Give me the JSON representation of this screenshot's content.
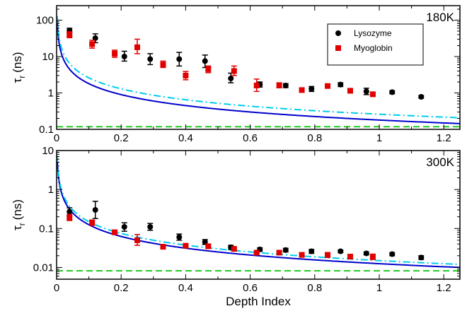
{
  "chart_data": [
    {
      "type": "scatter",
      "temperature_label": "180K",
      "ylabel_main": "τ",
      "ylabel_sub": "r",
      "ylabel_unit": "(ns)",
      "xlim": [
        0,
        1.25
      ],
      "ylim": [
        0.1,
        250
      ],
      "yscale": "log",
      "x_ticks": [
        "0",
        "0.2",
        "0.4",
        "0.6",
        "0.8",
        "1",
        "1.2"
      ],
      "y_ticks": [
        "0.1",
        "1",
        "10",
        "100"
      ],
      "legend": {
        "placement": "top-right",
        "entries": [
          "Lysozyme",
          "Myoglobin"
        ]
      },
      "series": [
        {
          "name": "Lysozyme",
          "marker": "circle",
          "color": "#000000",
          "points": [
            {
              "x": 0.04,
              "y": 52,
              "lo": 45,
              "hi": 60
            },
            {
              "x": 0.12,
              "y": 32,
              "lo": 24,
              "hi": 42
            },
            {
              "x": 0.21,
              "y": 10,
              "lo": 7.5,
              "hi": 14
            },
            {
              "x": 0.29,
              "y": 8.5,
              "lo": 6,
              "hi": 12
            },
            {
              "x": 0.38,
              "y": 8.5,
              "lo": 5.5,
              "hi": 13
            },
            {
              "x": 0.46,
              "y": 7.5,
              "lo": 5,
              "hi": 11
            },
            {
              "x": 0.54,
              "y": 2.5,
              "lo": 1.9,
              "hi": 3.5
            },
            {
              "x": 0.63,
              "y": 1.7,
              "lo": 1.45,
              "hi": 2.0
            },
            {
              "x": 0.71,
              "y": 1.6,
              "lo": 1.4,
              "hi": 1.8
            },
            {
              "x": 0.79,
              "y": 1.3,
              "lo": 1.1,
              "hi": 1.5
            },
            {
              "x": 0.88,
              "y": 1.7,
              "lo": 1.5,
              "hi": 1.9
            },
            {
              "x": 0.96,
              "y": 1.1,
              "lo": 0.9,
              "hi": 1.35
            },
            {
              "x": 1.04,
              "y": 1.05,
              "lo": 0.95,
              "hi": 1.15
            },
            {
              "x": 1.13,
              "y": 0.78,
              "lo": 0.72,
              "hi": 0.85
            }
          ]
        },
        {
          "name": "Myoglobin",
          "marker": "square",
          "color": "#e00000",
          "points": [
            {
              "x": 0.04,
              "y": 40,
              "lo": 33,
              "hi": 48
            },
            {
              "x": 0.11,
              "y": 22,
              "lo": 17,
              "hi": 28
            },
            {
              "x": 0.18,
              "y": 12,
              "lo": 9.5,
              "hi": 15
            },
            {
              "x": 0.25,
              "y": 18,
              "lo": 12,
              "hi": 30
            },
            {
              "x": 0.33,
              "y": 6,
              "lo": 5,
              "hi": 7.5
            },
            {
              "x": 0.4,
              "y": 3,
              "lo": 2.3,
              "hi": 3.9
            },
            {
              "x": 0.47,
              "y": 4.5,
              "lo": 3.6,
              "hi": 5.5
            },
            {
              "x": 0.55,
              "y": 4,
              "lo": 3,
              "hi": 5.5
            },
            {
              "x": 0.62,
              "y": 1.6,
              "lo": 1.1,
              "hi": 2.4
            },
            {
              "x": 0.69,
              "y": 1.6,
              "lo": 1.4,
              "hi": 1.9
            },
            {
              "x": 0.76,
              "y": 1.2,
              "lo": 1.05,
              "hi": 1.35
            },
            {
              "x": 0.84,
              "y": 1.55,
              "lo": 1.4,
              "hi": 1.7
            },
            {
              "x": 0.91,
              "y": 1.15,
              "lo": 1.0,
              "hi": 1.3
            },
            {
              "x": 0.98,
              "y": 0.92,
              "lo": 0.85,
              "hi": 1.0
            }
          ]
        }
      ],
      "curves": [
        {
          "style": "solid",
          "color": "#0000cc",
          "a": 0.18,
          "b": 1.0
        },
        {
          "style": "dash-dot",
          "color": "#00ccee",
          "a": 0.26,
          "b": 1.0
        },
        {
          "style": "dashed",
          "color": "#22cc22",
          "const": 0.118
        }
      ]
    },
    {
      "type": "scatter",
      "temperature_label": "300K",
      "ylabel_main": "τ",
      "ylabel_sub": "r",
      "ylabel_unit": "(ns)",
      "xlabel": "Depth Index",
      "xlim": [
        0,
        1.25
      ],
      "ylim": [
        0.005,
        10
      ],
      "yscale": "log",
      "x_ticks": [
        "0",
        "0.2",
        "0.4",
        "0.6",
        "0.8",
        "1",
        "1.2"
      ],
      "y_ticks": [
        "0.01",
        "0.1",
        "1",
        "10"
      ],
      "series": [
        {
          "name": "Lysozyme",
          "marker": "circle",
          "color": "#000000",
          "points": [
            {
              "x": 0.04,
              "y": 0.27,
              "lo": 0.21,
              "hi": 0.34
            },
            {
              "x": 0.12,
              "y": 0.3,
              "lo": 0.18,
              "hi": 0.5
            },
            {
              "x": 0.21,
              "y": 0.11,
              "lo": 0.085,
              "hi": 0.14
            },
            {
              "x": 0.29,
              "y": 0.11,
              "lo": 0.09,
              "hi": 0.135
            },
            {
              "x": 0.38,
              "y": 0.06,
              "lo": 0.05,
              "hi": 0.072
            },
            {
              "x": 0.46,
              "y": 0.045,
              "lo": 0.039,
              "hi": 0.052
            },
            {
              "x": 0.54,
              "y": 0.033,
              "lo": 0.029,
              "hi": 0.037
            },
            {
              "x": 0.63,
              "y": 0.029,
              "lo": 0.026,
              "hi": 0.032
            },
            {
              "x": 0.71,
              "y": 0.028,
              "lo": 0.025,
              "hi": 0.031
            },
            {
              "x": 0.79,
              "y": 0.026,
              "lo": 0.023,
              "hi": 0.029
            },
            {
              "x": 0.88,
              "y": 0.026,
              "lo": 0.024,
              "hi": 0.028
            },
            {
              "x": 0.96,
              "y": 0.023,
              "lo": 0.021,
              "hi": 0.025
            },
            {
              "x": 1.04,
              "y": 0.022,
              "lo": 0.02,
              "hi": 0.024
            },
            {
              "x": 1.13,
              "y": 0.018,
              "lo": 0.016,
              "hi": 0.02
            }
          ]
        },
        {
          "name": "Myoglobin",
          "marker": "square",
          "color": "#e00000",
          "points": [
            {
              "x": 0.04,
              "y": 0.19,
              "lo": 0.16,
              "hi": 0.23
            },
            {
              "x": 0.11,
              "y": 0.14,
              "lo": 0.12,
              "hi": 0.165
            },
            {
              "x": 0.18,
              "y": 0.08,
              "lo": 0.07,
              "hi": 0.09
            },
            {
              "x": 0.25,
              "y": 0.05,
              "lo": 0.037,
              "hi": 0.07
            },
            {
              "x": 0.33,
              "y": 0.034,
              "lo": 0.031,
              "hi": 0.037
            },
            {
              "x": 0.4,
              "y": 0.036,
              "lo": 0.032,
              "hi": 0.041
            },
            {
              "x": 0.47,
              "y": 0.035,
              "lo": 0.031,
              "hi": 0.039
            },
            {
              "x": 0.55,
              "y": 0.03,
              "lo": 0.027,
              "hi": 0.034
            },
            {
              "x": 0.62,
              "y": 0.024,
              "lo": 0.021,
              "hi": 0.027
            },
            {
              "x": 0.69,
              "y": 0.024,
              "lo": 0.022,
              "hi": 0.026
            },
            {
              "x": 0.76,
              "y": 0.021,
              "lo": 0.019,
              "hi": 0.024
            },
            {
              "x": 0.84,
              "y": 0.021,
              "lo": 0.018,
              "hi": 0.024
            },
            {
              "x": 0.91,
              "y": 0.019,
              "lo": 0.017,
              "hi": 0.021
            },
            {
              "x": 0.98,
              "y": 0.019,
              "lo": 0.016,
              "hi": 0.022
            }
          ]
        }
      ],
      "curves": [
        {
          "style": "solid",
          "color": "#0000cc",
          "a": 0.0125,
          "b": 1.0
        },
        {
          "style": "dash-dot",
          "color": "#00ccee",
          "a": 0.015,
          "b": 1.0
        },
        {
          "style": "dashed",
          "color": "#22cc22",
          "const": 0.0082
        }
      ]
    }
  ]
}
